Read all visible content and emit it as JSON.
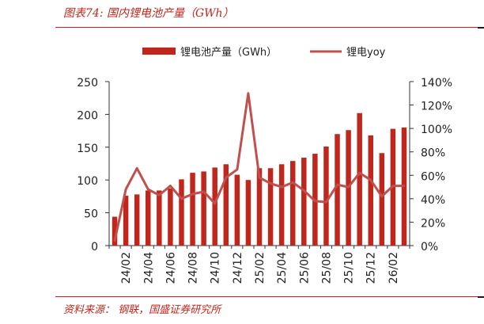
{
  "figure": {
    "title": "图表74:  国内锂电池产量（GWh）",
    "source": "资料来源： 钢联，国盛证券研究所"
  },
  "chart_data": {
    "type": "bar",
    "categories": [
      "24/01",
      "24/02",
      "24/03",
      "24/04",
      "24/05",
      "24/06",
      "24/07",
      "24/08",
      "24/09",
      "24/10",
      "24/11",
      "24/12",
      "25/01",
      "25/02",
      "25/03",
      "25/04",
      "25/05",
      "25/06",
      "25/07",
      "25/08",
      "25/09",
      "25/10",
      "25/11",
      "25/12",
      "26/01",
      "26/02",
      "26/03"
    ],
    "tick_labels": [
      "24/02",
      "24/04",
      "24/06",
      "24/08",
      "24/10",
      "24/12",
      "25/02",
      "25/04",
      "25/06",
      "25/08",
      "25/10",
      "25/12",
      "26/02"
    ],
    "series": [
      {
        "name": "锂电池产量（GWh）",
        "kind": "bar",
        "axis": "left",
        "color": "#c0261b",
        "values": [
          44,
          76,
          78,
          84,
          84,
          87,
          101,
          111,
          113,
          119,
          124,
          108,
          100,
          118,
          118,
          124,
          129,
          134,
          140,
          151,
          170,
          176,
          202,
          168,
          141,
          178,
          180
        ]
      },
      {
        "name": "锂电yoy",
        "kind": "line",
        "axis": "right",
        "color": "#c0504d",
        "values": [
          0.04,
          0.48,
          0.66,
          0.48,
          0.43,
          0.51,
          0.4,
          0.44,
          0.46,
          0.36,
          0.58,
          0.65,
          1.3,
          0.58,
          0.53,
          0.5,
          0.54,
          0.47,
          0.38,
          0.37,
          0.52,
          0.5,
          0.62,
          0.56,
          0.42,
          0.51,
          0.51
        ]
      }
    ],
    "ylim": [
      0,
      250
    ],
    "yticks": [
      0,
      50,
      100,
      150,
      200,
      250
    ],
    "y2lim": [
      0,
      1.4
    ],
    "y2ticks": [
      0,
      0.2,
      0.4,
      0.6,
      0.8,
      1.0,
      1.2,
      1.4
    ],
    "y2ticklabels": [
      "0%",
      "20%",
      "40%",
      "60%",
      "80%",
      "100%",
      "120%",
      "140%"
    ],
    "legend_position": "top",
    "grid": false
  }
}
